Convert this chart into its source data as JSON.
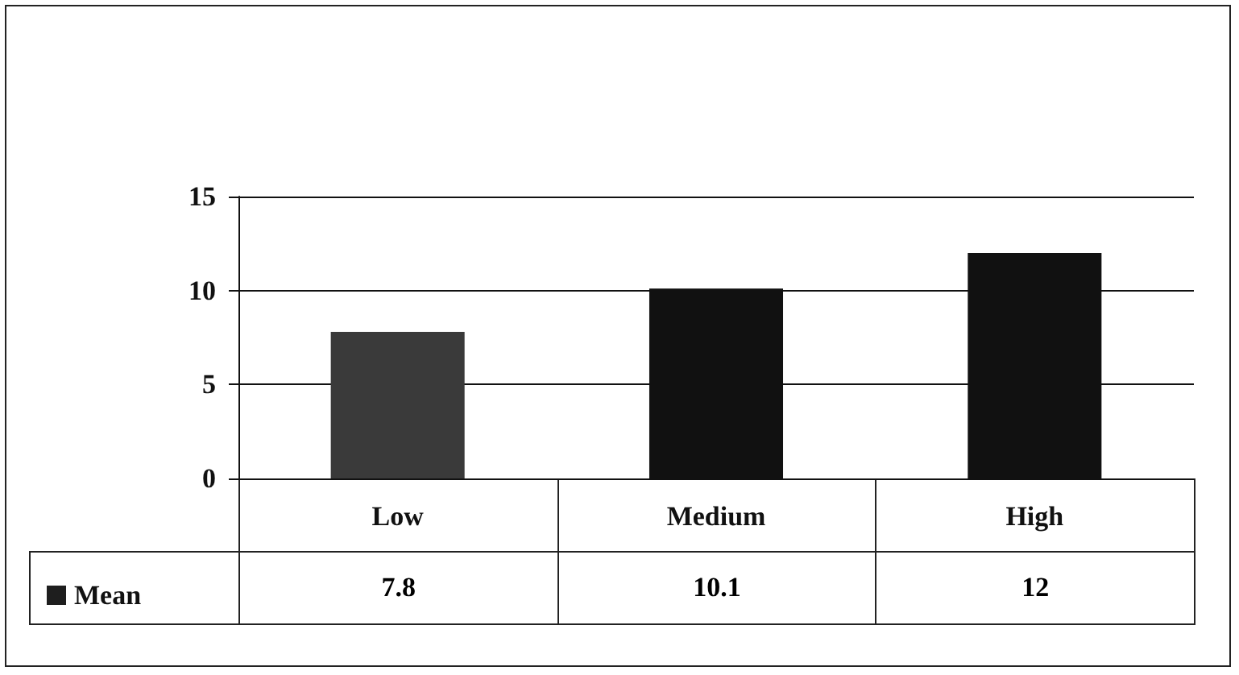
{
  "chart_data": {
    "type": "bar",
    "categories": [
      "Low",
      "Medium",
      "High"
    ],
    "series": [
      {
        "name": "Mean",
        "color": "#1e1e1e",
        "colors": [
          "#3a3a3a",
          "#111111",
          "#111111"
        ],
        "values": [
          7.8,
          10.1,
          12
        ]
      }
    ],
    "ylim": [
      0,
      15
    ],
    "yticks": [
      0,
      5,
      10,
      15
    ],
    "grid": "y",
    "legend": "bottom left",
    "data_labels": true
  }
}
